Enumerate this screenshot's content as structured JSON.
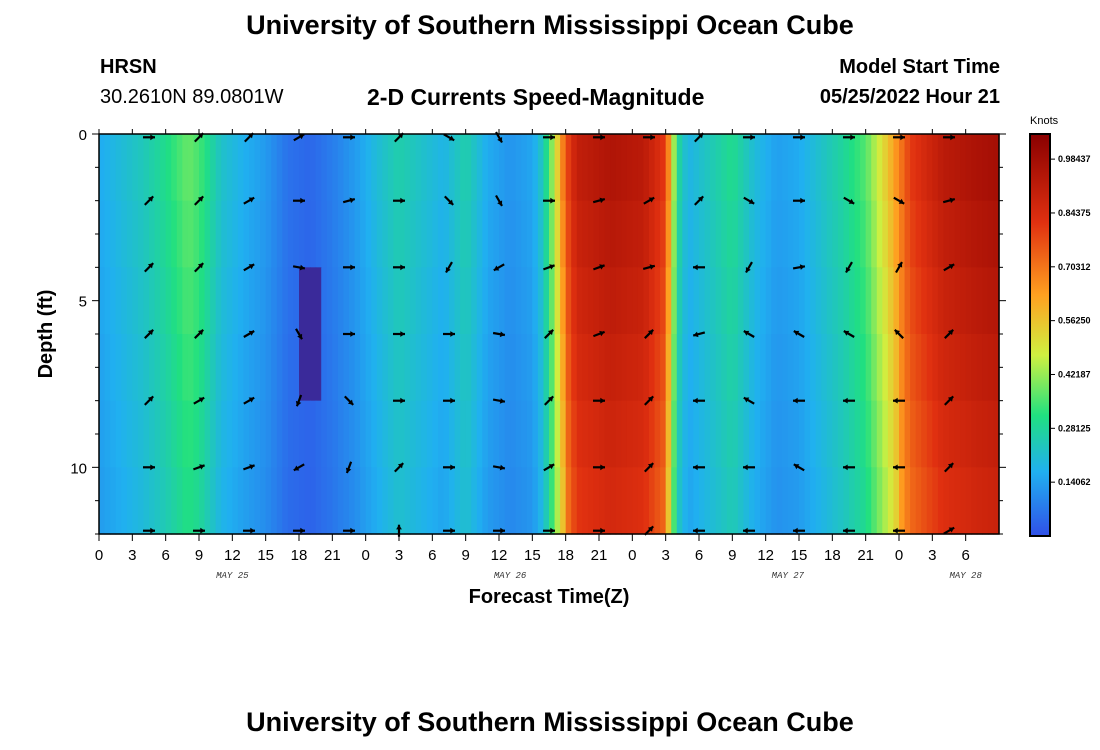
{
  "header": {
    "title": "University of Southern Mississippi Ocean Cube",
    "station": "HRSN",
    "coords": "30.2610N  89.0801W",
    "plot_title": "2-D Currents Speed-Magnitude",
    "model_label": "Model Start Time",
    "model_time": "05/25/2022 Hour 21"
  },
  "footer": {
    "title": "University of Southern Mississippi Ocean Cube"
  },
  "colors": {
    "stops": [
      "#3050e8",
      "#20b0f0",
      "#20e080",
      "#d0f040",
      "#ffa020",
      "#e03010",
      "#8a0000"
    ],
    "deep_blue": "#3a2a9a"
  },
  "chart_data": {
    "type": "heatmap",
    "title": "2-D Currents Speed-Magnitude",
    "xlabel": "Forecast Time(Z)",
    "ylabel": "Depth (ft)",
    "colorbar_unit": "Knots",
    "colorbar_range": [
      0.0,
      1.05
    ],
    "colorbar_ticks": [
      "0.98437",
      "0.84375",
      "0.70312",
      "0.56250",
      "0.42187",
      "0.28125",
      "0.14062"
    ],
    "colorbar_values": [
      0.98437,
      0.84375,
      0.70312,
      0.5625,
      0.42187,
      0.28125,
      0.14062
    ],
    "x_range": [
      0,
      81
    ],
    "y_range": [
      0,
      12
    ],
    "x_tick_labels": [
      "0",
      "3",
      "6",
      "9",
      "12",
      "15",
      "18",
      "21",
      "0",
      "3",
      "6",
      "9",
      "12",
      "15",
      "18",
      "21",
      "0",
      "3",
      "6",
      "9",
      "12",
      "15",
      "18",
      "21",
      "0",
      "3",
      "6"
    ],
    "y_ticks": [
      0,
      5,
      10
    ],
    "date_labels": [
      {
        "label": "MAY 25",
        "hour": 12
      },
      {
        "label": "MAY 26",
        "hour": 37
      },
      {
        "label": "MAY 27",
        "hour": 62
      },
      {
        "label": "MAY 28",
        "hour": 78
      }
    ],
    "depths_ft": [
      0,
      2,
      4,
      6,
      8,
      10,
      12
    ],
    "speed_profile": [
      {
        "hour": 0,
        "speed": 0.16
      },
      {
        "hour": 2,
        "speed": 0.2
      },
      {
        "hour": 4,
        "speed": 0.24
      },
      {
        "hour": 6,
        "speed": 0.3
      },
      {
        "hour": 8,
        "speed": 0.38
      },
      {
        "hour": 9,
        "speed": 0.35
      },
      {
        "hour": 11,
        "speed": 0.22
      },
      {
        "hour": 13,
        "speed": 0.17
      },
      {
        "hour": 15,
        "speed": 0.13
      },
      {
        "hour": 17,
        "speed": 0.06
      },
      {
        "hour": 19,
        "speed": 0.04
      },
      {
        "hour": 21,
        "speed": 0.08
      },
      {
        "hour": 23,
        "speed": 0.13
      },
      {
        "hour": 25,
        "speed": 0.2
      },
      {
        "hour": 27,
        "speed": 0.26
      },
      {
        "hour": 29,
        "speed": 0.22
      },
      {
        "hour": 31,
        "speed": 0.18
      },
      {
        "hour": 33,
        "speed": 0.26
      },
      {
        "hour": 35,
        "speed": 0.16
      },
      {
        "hour": 37,
        "speed": 0.12
      },
      {
        "hour": 39,
        "speed": 0.15
      },
      {
        "hour": 40,
        "speed": 0.24
      },
      {
        "hour": 41,
        "speed": 0.46
      },
      {
        "hour": 42,
        "speed": 0.76
      },
      {
        "hour": 43,
        "speed": 0.9
      },
      {
        "hour": 46,
        "speed": 0.95
      },
      {
        "hour": 49,
        "speed": 0.92
      },
      {
        "hour": 51,
        "speed": 0.8
      },
      {
        "hour": 52,
        "speed": 0.3
      },
      {
        "hour": 53,
        "speed": 0.18
      },
      {
        "hour": 55,
        "speed": 0.24
      },
      {
        "hour": 57,
        "speed": 0.3
      },
      {
        "hour": 59,
        "speed": 0.2
      },
      {
        "hour": 61,
        "speed": 0.14
      },
      {
        "hour": 63,
        "speed": 0.16
      },
      {
        "hour": 65,
        "speed": 0.22
      },
      {
        "hour": 67,
        "speed": 0.28
      },
      {
        "hour": 69,
        "speed": 0.36
      },
      {
        "hour": 71,
        "speed": 0.56
      },
      {
        "hour": 73,
        "speed": 0.8
      },
      {
        "hour": 76,
        "speed": 0.92
      },
      {
        "hour": 79,
        "speed": 0.96
      },
      {
        "hour": 81,
        "speed": 0.98
      }
    ],
    "arrow_hours": [
      4.5,
      9,
      13.5,
      18,
      22.5,
      27,
      31.5,
      36,
      40.5,
      45,
      49.5,
      54,
      58.5,
      63,
      67.5,
      72,
      76.5
    ],
    "arrow_depths_ft": [
      0,
      2,
      4,
      6,
      8,
      10,
      12
    ],
    "arrow_directions_deg": [
      [
        90,
        45,
        45,
        60,
        90,
        45,
        120,
        150,
        90,
        90,
        90,
        45,
        90,
        90,
        90,
        90,
        90
      ],
      [
        45,
        45,
        60,
        90,
        75,
        90,
        135,
        150,
        90,
        75,
        60,
        45,
        120,
        90,
        120,
        120,
        75
      ],
      [
        45,
        45,
        60,
        100,
        90,
        90,
        210,
        240,
        70,
        70,
        75,
        270,
        210,
        80,
        210,
        30,
        60
      ],
      [
        45,
        45,
        60,
        150,
        90,
        90,
        90,
        100,
        45,
        70,
        45,
        255,
        300,
        300,
        300,
        315,
        45
      ],
      [
        45,
        60,
        60,
        200,
        135,
        90,
        90,
        100,
        45,
        90,
        45,
        270,
        300,
        270,
        270,
        270,
        45
      ],
      [
        90,
        70,
        70,
        240,
        200,
        45,
        90,
        100,
        60,
        90,
        45,
        270,
        270,
        300,
        270,
        270,
        45
      ],
      [
        90,
        90,
        90,
        90,
        90,
        0,
        90,
        90,
        90,
        90,
        45,
        270,
        270,
        270,
        270,
        270,
        60
      ]
    ]
  }
}
